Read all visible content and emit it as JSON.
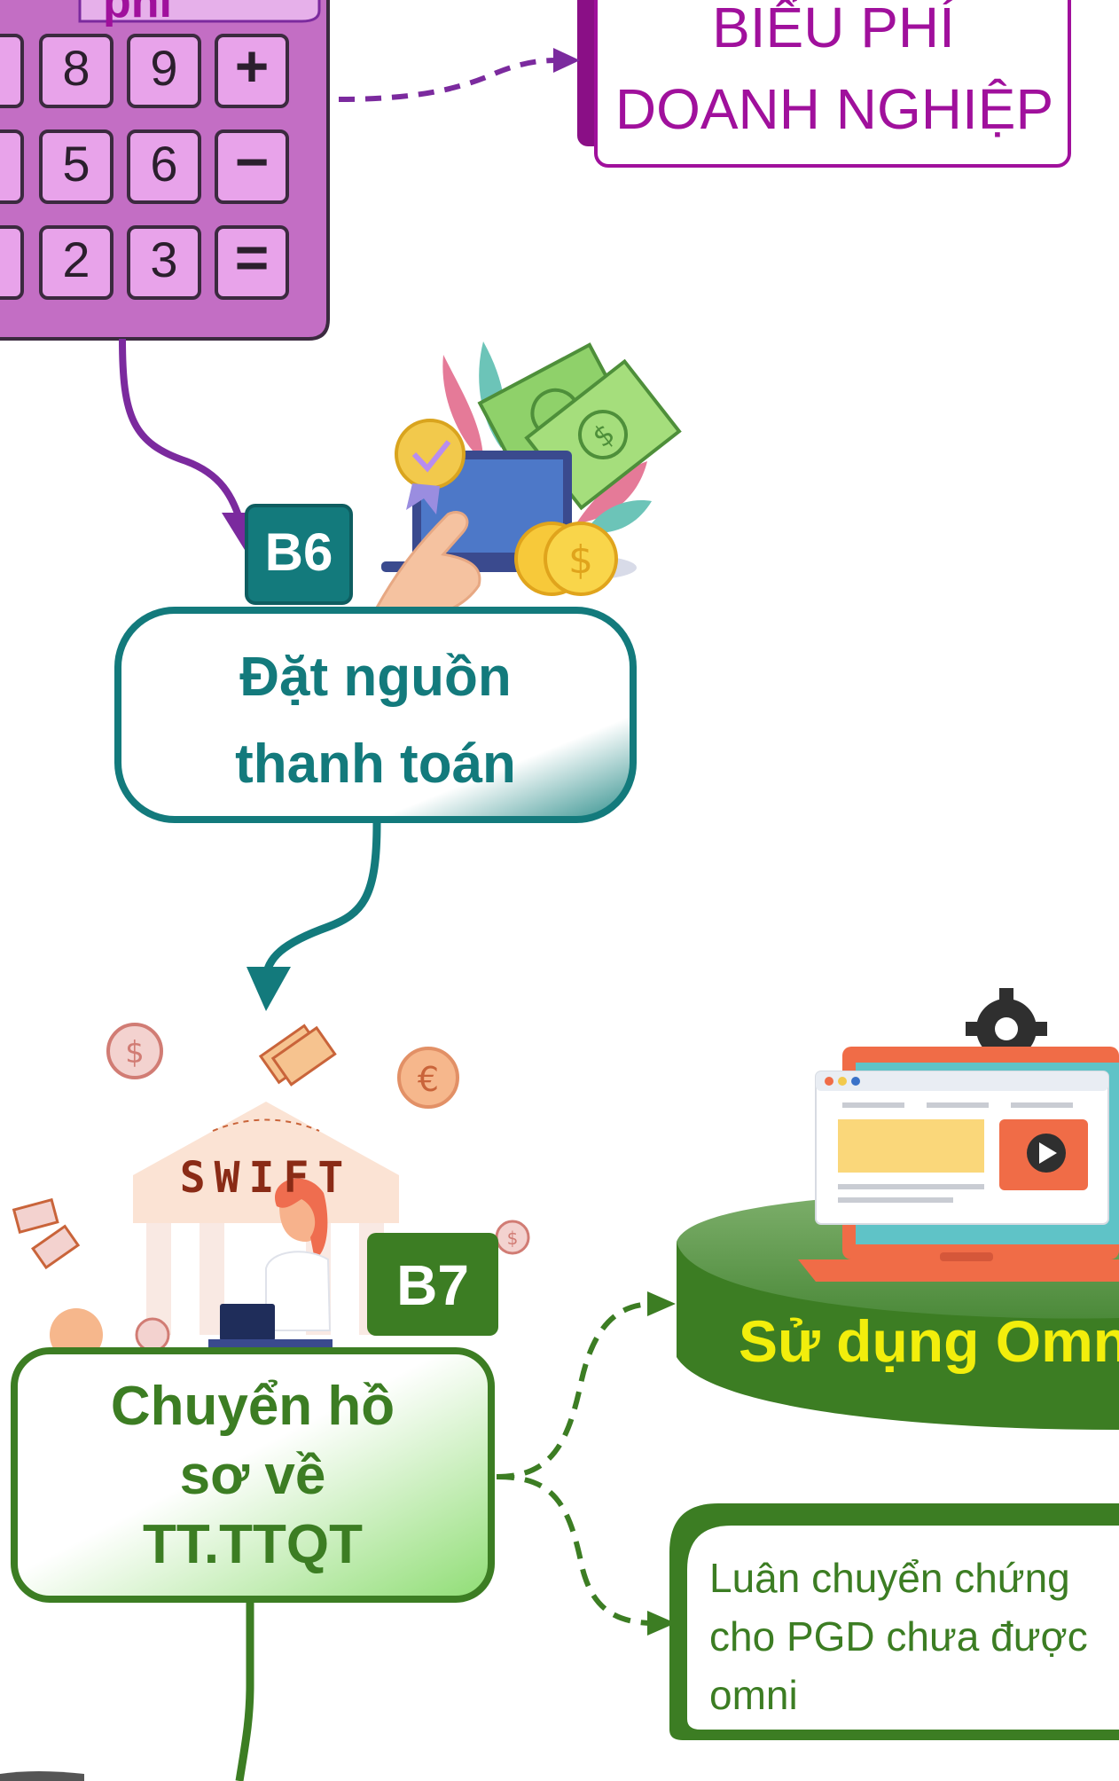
{
  "calculator": {
    "label_fragment": "phí",
    "keys": [
      {
        "label": "8"
      },
      {
        "label": "9"
      },
      {
        "label": "+"
      },
      {
        "label": "5"
      },
      {
        "label": "6"
      },
      {
        "label": "−"
      },
      {
        "label": "2"
      },
      {
        "label": "3"
      },
      {
        "label": "="
      }
    ]
  },
  "fee_node": {
    "line1": "BIỂU PHÍ",
    "line2": "DOANH NGHIỆP"
  },
  "step6": {
    "badge": "B6",
    "line1": "Đặt nguồn",
    "line2": "thanh toán"
  },
  "swift": {
    "sign": "SWIFT"
  },
  "step7": {
    "badge": "B7",
    "line1": "Chuyển hồ",
    "line2": "sơ về",
    "line3": "TT.TTQT"
  },
  "omni_node": {
    "text": "Sử dụng Omn"
  },
  "pgd_node": {
    "line1": "Luân chuyển chứng",
    "line2": "cho PGD chưa được",
    "line3": "omni"
  },
  "colors": {
    "purple": "#7b2a9e",
    "magenta": "#a0109c",
    "teal": "#137a7c",
    "green": "#3c7d23",
    "yellow": "#f2ee0c",
    "calculator_body": "#c36ec4"
  }
}
